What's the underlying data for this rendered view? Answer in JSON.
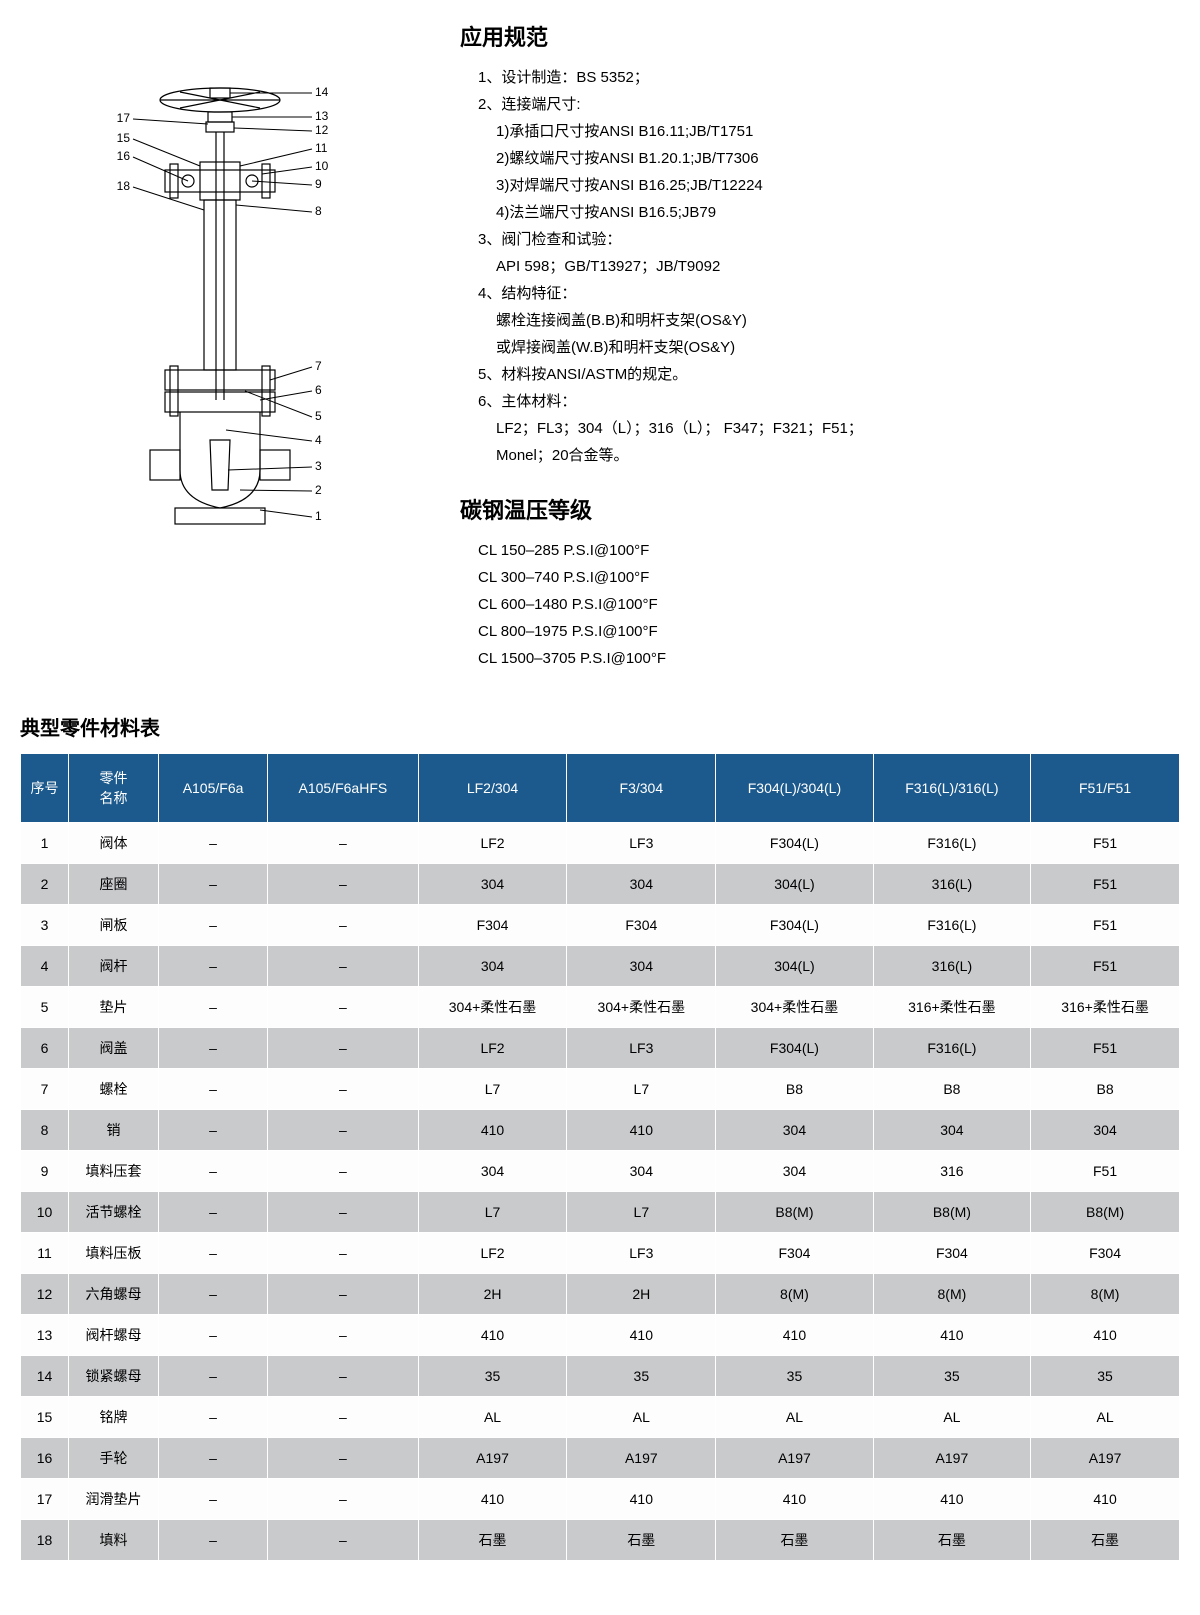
{
  "colors": {
    "header_bg": "#1c5a8d",
    "header_fg": "#ffffff",
    "row_odd_bg": "#fdfdfd",
    "row_even_bg": "#c9cacc",
    "border": "#ffffff",
    "text": "#000000"
  },
  "fonts": {
    "body_size": 14,
    "h2_size": 22,
    "table_title_size": 20
  },
  "diagram": {
    "callouts_left": [
      "17",
      "15",
      "16",
      "18"
    ],
    "callouts_right_upper": [
      "14",
      "13",
      "12",
      "11",
      "10",
      "9",
      "8"
    ],
    "callouts_right_lower": [
      "7",
      "6",
      "5",
      "4",
      "3",
      "2",
      "1"
    ]
  },
  "spec": {
    "title": "应用规范",
    "items": [
      {
        "main": "1、设计制造：BS 5352；"
      },
      {
        "main": "2、连接端尺寸:"
      },
      {
        "sub": "1)承插口尺寸按ANSI B16.11;JB/T1751"
      },
      {
        "sub": "2)螺纹端尺寸按ANSI B1.20.1;JB/T7306"
      },
      {
        "sub": "3)对焊端尺寸按ANSI B16.25;JB/T12224"
      },
      {
        "sub": "4)法兰端尺寸按ANSI B16.5;JB79"
      },
      {
        "main": "3、阀门检查和试验："
      },
      {
        "sub": "API 598；GB/T13927；JB/T9092"
      },
      {
        "main": "4、结构特征："
      },
      {
        "sub": "螺栓连接阀盖(B.B)和明杆支架(OS&Y)"
      },
      {
        "sub": "或焊接阀盖(W.B)和明杆支架(OS&Y)"
      },
      {
        "main": "5、材料按ANSI/ASTM的规定。"
      },
      {
        "main": "6、主体材料："
      },
      {
        "sub": "LF2；FL3；304（L）；316（L）； F347；F321；F51；"
      },
      {
        "sub": "Monel；20合金等。"
      }
    ],
    "temp_title": "碳钢温压等级",
    "temp_lines": [
      "CL 150–285 P.S.I@100°F",
      "CL 300–740 P.S.I@100°F",
      "CL 600–1480 P.S.I@100°F",
      "CL 800–1975 P.S.I@100°F",
      "CL 1500–3705 P.S.I@100°F"
    ]
  },
  "table": {
    "title": "典型零件材料表",
    "columns": [
      "序号",
      "零件\n名称",
      "A105/F6a",
      "A105/F6aHFS",
      "LF2/304",
      "F3/304",
      "F304(L)/304(L)",
      "F316(L)/316(L)",
      "F51/F51"
    ],
    "rows": [
      [
        "1",
        "阀体",
        "–",
        "–",
        "LF2",
        "LF3",
        "F304(L)",
        "F316(L)",
        "F51"
      ],
      [
        "2",
        "座圈",
        "–",
        "–",
        "304",
        "304",
        "304(L)",
        "316(L)",
        "F51"
      ],
      [
        "3",
        "闸板",
        "–",
        "–",
        "F304",
        "F304",
        "F304(L)",
        "F316(L)",
        "F51"
      ],
      [
        "4",
        "阀杆",
        "–",
        "–",
        "304",
        "304",
        "304(L)",
        "316(L)",
        "F51"
      ],
      [
        "5",
        "垫片",
        "–",
        "–",
        "304+柔性石墨",
        "304+柔性石墨",
        "304+柔性石墨",
        "316+柔性石墨",
        "316+柔性石墨"
      ],
      [
        "6",
        "阀盖",
        "–",
        "–",
        "LF2",
        "LF3",
        "F304(L)",
        "F316(L)",
        "F51"
      ],
      [
        "7",
        "螺栓",
        "–",
        "–",
        "L7",
        "L7",
        "B8",
        "B8",
        "B8"
      ],
      [
        "8",
        "销",
        "–",
        "–",
        "410",
        "410",
        "304",
        "304",
        "304"
      ],
      [
        "9",
        "填料压套",
        "–",
        "–",
        "304",
        "304",
        "304",
        "316",
        "F51"
      ],
      [
        "10",
        "活节螺栓",
        "–",
        "–",
        "L7",
        "L7",
        "B8(M)",
        "B8(M)",
        "B8(M)"
      ],
      [
        "11",
        "填料压板",
        "–",
        "–",
        "LF2",
        "LF3",
        "F304",
        "F304",
        "F304"
      ],
      [
        "12",
        "六角螺母",
        "–",
        "–",
        "2H",
        "2H",
        "8(M)",
        "8(M)",
        "8(M)"
      ],
      [
        "13",
        "阀杆螺母",
        "–",
        "–",
        "410",
        "410",
        "410",
        "410",
        "410"
      ],
      [
        "14",
        "锁紧螺母",
        "–",
        "–",
        "35",
        "35",
        "35",
        "35",
        "35"
      ],
      [
        "15",
        "铭牌",
        "–",
        "–",
        "AL",
        "AL",
        "AL",
        "AL",
        "AL"
      ],
      [
        "16",
        "手轮",
        "–",
        "–",
        "A197",
        "A197",
        "A197",
        "A197",
        "A197"
      ],
      [
        "17",
        "润滑垫片",
        "–",
        "–",
        "410",
        "410",
        "410",
        "410",
        "410"
      ],
      [
        "18",
        "填料",
        "–",
        "–",
        "石墨",
        "石墨",
        "石墨",
        "石墨",
        "石墨"
      ]
    ]
  }
}
